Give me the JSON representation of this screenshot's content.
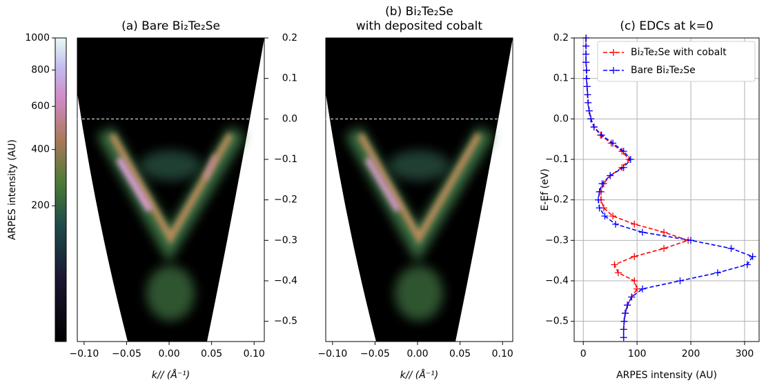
{
  "chart_data": [
    {
      "type": "heatmap",
      "title": [
        "(a) Bare Bi₂Te₂Se"
      ],
      "xlabel": "k// (Å⁻¹)",
      "xlim": [
        -0.108,
        0.112
      ],
      "xticks": [
        {
          "value": -0.1,
          "label": "−0.10"
        },
        {
          "value": -0.05,
          "label": "−0.05"
        },
        {
          "value": 0,
          "label": "0.00"
        },
        {
          "value": 0.05,
          "label": "0.05"
        },
        {
          "value": 0.1,
          "label": "0.10"
        }
      ],
      "ylim": [
        -0.55,
        0.2
      ],
      "yticks": [
        0.2,
        0.1,
        {
          "value": 0,
          "label": "0.0"
        },
        {
          "value": -0.1,
          "label": "−0.1"
        },
        {
          "value": -0.2,
          "label": "−0.2"
        },
        {
          "value": -0.3,
          "label": "−0.3"
        },
        {
          "value": -0.4,
          "label": "−0.4"
        },
        {
          "value": -0.5,
          "label": "−0.5"
        }
      ],
      "hline": 0,
      "colorbar": {
        "label": "ARPES intensity (AU)",
        "lim": [
          0,
          1000
        ],
        "ticks": [
          200,
          400,
          600,
          800,
          1000
        ],
        "gamma": 0.5
      }
    },
    {
      "type": "heatmap",
      "title": [
        "(b) Bi₂Te₂Se",
        "with deposited cobalt"
      ],
      "xlabel": "k// (Å⁻¹)",
      "xlim": [
        -0.108,
        0.112
      ],
      "xticks": [
        {
          "value": -0.1,
          "label": "−0.10"
        },
        {
          "value": -0.05,
          "label": "−0.05"
        },
        {
          "value": 0,
          "label": "0.00"
        },
        {
          "value": 0.05,
          "label": "0.05"
        },
        {
          "value": 0.1,
          "label": "0.10"
        }
      ],
      "ylim": [
        -0.55,
        0.2
      ],
      "hline": 0
    },
    {
      "type": "line",
      "title": "(c) EDCs at k=0",
      "xlabel": "ARPES intensity (AU)",
      "ylabel": "E-Ef (eV)",
      "y": [
        0.2,
        0.18,
        0.16,
        0.14,
        0.12,
        0.1,
        0.08,
        0.06,
        0.04,
        0.02,
        0,
        -0.02,
        -0.04,
        -0.06,
        -0.08,
        -0.1,
        -0.12,
        -0.14,
        -0.16,
        -0.18,
        -0.2,
        -0.22,
        -0.24,
        -0.26,
        -0.28,
        -0.3,
        -0.32,
        -0.34,
        -0.36,
        -0.38,
        -0.4,
        -0.42,
        -0.44,
        -0.46,
        -0.48,
        -0.5,
        -0.52,
        -0.54
      ],
      "series": [
        {
          "name": "Bi₂Te₂Se with cobalt",
          "color": "#ff0000",
          "values": [
            5,
            5,
            5,
            5,
            6,
            6,
            7,
            8,
            9,
            11,
            14,
            20,
            32,
            52,
            72,
            85,
            72,
            50,
            38,
            33,
            33,
            38,
            55,
            95,
            150,
            195,
            150,
            95,
            58,
            65,
            95,
            100,
            90,
            82,
            78,
            76,
            75,
            75
          ]
        },
        {
          "name": "Bare Bi₂Te₂Se",
          "color": "#0000ff",
          "values": [
            5,
            5,
            5,
            5,
            6,
            6,
            7,
            8,
            9,
            11,
            14,
            20,
            34,
            55,
            75,
            88,
            75,
            50,
            35,
            30,
            28,
            30,
            40,
            60,
            110,
            200,
            275,
            315,
            305,
            250,
            180,
            110,
            90,
            82,
            78,
            76,
            75,
            75
          ]
        }
      ],
      "xlim": [
        -17,
        327
      ],
      "xticks": [
        0,
        100,
        200,
        300
      ],
      "ylim": [
        -0.55,
        0.2
      ],
      "yticks": [
        0.2,
        0.1,
        {
          "value": 0,
          "label": "0.0"
        },
        {
          "value": -0.1,
          "label": "−0.1"
        },
        {
          "value": -0.2,
          "label": "−0.2"
        },
        {
          "value": -0.3,
          "label": "−0.3"
        },
        {
          "value": -0.4,
          "label": "−0.4"
        },
        {
          "value": -0.5,
          "label": "−0.5"
        }
      ],
      "grid": true,
      "legend": "upper right"
    }
  ]
}
